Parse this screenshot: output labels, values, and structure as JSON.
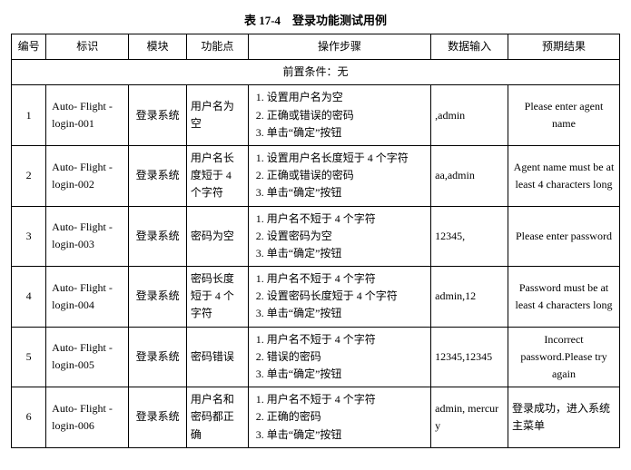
{
  "title": "表 17-4　登录功能测试用例",
  "columns": [
    "编号",
    "标识",
    "模块",
    "功能点",
    "操作步骤",
    "数据输入",
    "预期结果"
  ],
  "precondition": "前置条件：无",
  "rows": [
    {
      "no": "1",
      "id": "Auto- Flight -login-001",
      "module": "登录系统",
      "func": "用户名为空",
      "steps": [
        "设置用户名为空",
        "正确或错误的密码",
        "单击“确定”按钮"
      ],
      "data": ",admin",
      "result": "Please enter agent name",
      "resultAlign": "center"
    },
    {
      "no": "2",
      "id": "Auto- Flight -login-002",
      "module": "登录系统",
      "func": "用户名长度短于 4 个字符",
      "steps": [
        "设置用户名长度短于 4 个字符",
        "正确或错误的密码",
        "单击“确定”按钮"
      ],
      "data": "aa,admin",
      "result": "Agent name must be at least 4 characters long",
      "resultAlign": "center"
    },
    {
      "no": "3",
      "id": "Auto- Flight -login-003",
      "module": "登录系统",
      "func": "密码为空",
      "steps": [
        "用户名不短于 4 个字符",
        "设置密码为空",
        "单击“确定”按钮"
      ],
      "data": "12345,",
      "result": "Please enter password",
      "resultAlign": "center"
    },
    {
      "no": "4",
      "id": "Auto- Flight -login-004",
      "module": "登录系统",
      "func": "密码长度短于 4 个字符",
      "steps": [
        "用户名不短于 4 个字符",
        "设置密码长度短于 4 个字符",
        "单击“确定”按钮"
      ],
      "data": "admin,12",
      "result": "Password must be at least 4 characters long",
      "resultAlign": "center"
    },
    {
      "no": "5",
      "id": "Auto- Flight -login-005",
      "module": "登录系统",
      "func": "密码错误",
      "steps": [
        "用户名不短于 4 个字符",
        "错误的密码",
        "单击“确定”按钮"
      ],
      "data": "12345,12345",
      "result": "Incorrect password.Please try again",
      "resultAlign": "center"
    },
    {
      "no": "6",
      "id": "Auto- Flight -login-006",
      "module": "登录系统",
      "func": "用户名和密码都正确",
      "steps": [
        "用户名不短于 4 个字符",
        "正确的密码",
        "单击“确定”按钮"
      ],
      "data": "admin, mercury",
      "result": "登录成功，进入系统主菜单",
      "resultAlign": "left"
    }
  ]
}
